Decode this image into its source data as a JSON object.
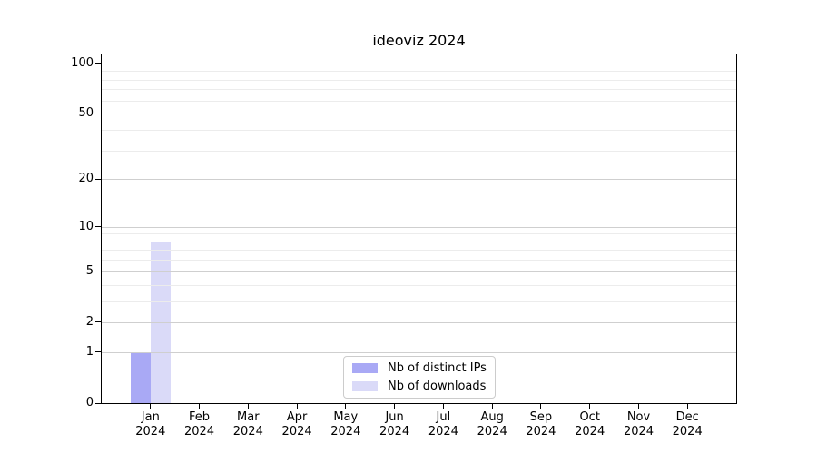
{
  "chart_data": {
    "type": "bar",
    "title": "ideoviz 2024",
    "categories": [
      "Jan",
      "Feb",
      "Mar",
      "Apr",
      "May",
      "Jun",
      "Jul",
      "Aug",
      "Sep",
      "Oct",
      "Nov",
      "Dec"
    ],
    "x_tick_year": "2024",
    "series": [
      {
        "name": "Nb of distinct IPs",
        "color": "#a9a9f5",
        "values": [
          1,
          0,
          0,
          0,
          0,
          0,
          0,
          0,
          0,
          0,
          0,
          0
        ]
      },
      {
        "name": "Nb of downloads",
        "color": "#dadaf8",
        "values": [
          8,
          0,
          0,
          0,
          0,
          0,
          0,
          0,
          0,
          0,
          0,
          0
        ]
      }
    ],
    "y_scale": "log1p",
    "ylim": [
      0,
      113
    ],
    "y_major_ticks": [
      0,
      1,
      2,
      5,
      10,
      20,
      50,
      100
    ],
    "y_minor_ticks": [
      3,
      4,
      6,
      7,
      8,
      9,
      30,
      40,
      60,
      70,
      80,
      90
    ],
    "grid": "on",
    "legend_position": "lower center, inside axes",
    "colors": {
      "axis": "#000000",
      "grid_major": "#cfcfcf",
      "grid_minor": "#ececec",
      "background": "#ffffff"
    }
  }
}
